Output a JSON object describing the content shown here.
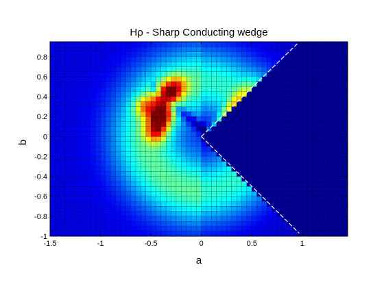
{
  "chart_data": {
    "type": "heatmap",
    "title": "Hρ - Sharp Conducting wedge",
    "xlabel": "a",
    "ylabel": "b",
    "xlim": [
      -1.5,
      1.45
    ],
    "ylim": [
      -1.0,
      0.95
    ],
    "x_ticks": [
      "-1.5",
      "-1",
      "-0.5",
      "0",
      "0.5",
      "1"
    ],
    "x_tick_values": [
      -1.5,
      -1,
      -0.5,
      0,
      0.5,
      1
    ],
    "y_ticks": [
      "-1",
      "-0.8",
      "-0.6",
      "-0.4",
      "-0.2",
      "0",
      "0.2",
      "0.4",
      "0.6",
      "0.8"
    ],
    "y_tick_values": [
      -1,
      -0.8,
      -0.6,
      -0.4,
      -0.2,
      0,
      0.2,
      0.4,
      0.6,
      0.8
    ],
    "grid_step": 0.05,
    "colormap": "jet",
    "wedge": {
      "apex": [
        0,
        0
      ],
      "upper_edge_end": [
        0.95,
        0.93
      ],
      "lower_edge_end": [
        0.97,
        -0.97
      ]
    },
    "hotspots": [
      {
        "a": -0.4,
        "b": 0.2,
        "value": 1.0
      },
      {
        "a": -0.35,
        "b": 0.4,
        "value": 0.95
      },
      {
        "a": -0.45,
        "b": 0.05,
        "value": 0.7
      },
      {
        "a": -0.25,
        "b": 0.5,
        "value": 0.6
      },
      {
        "a": -0.55,
        "b": 0.3,
        "value": 0.5
      }
    ]
  }
}
